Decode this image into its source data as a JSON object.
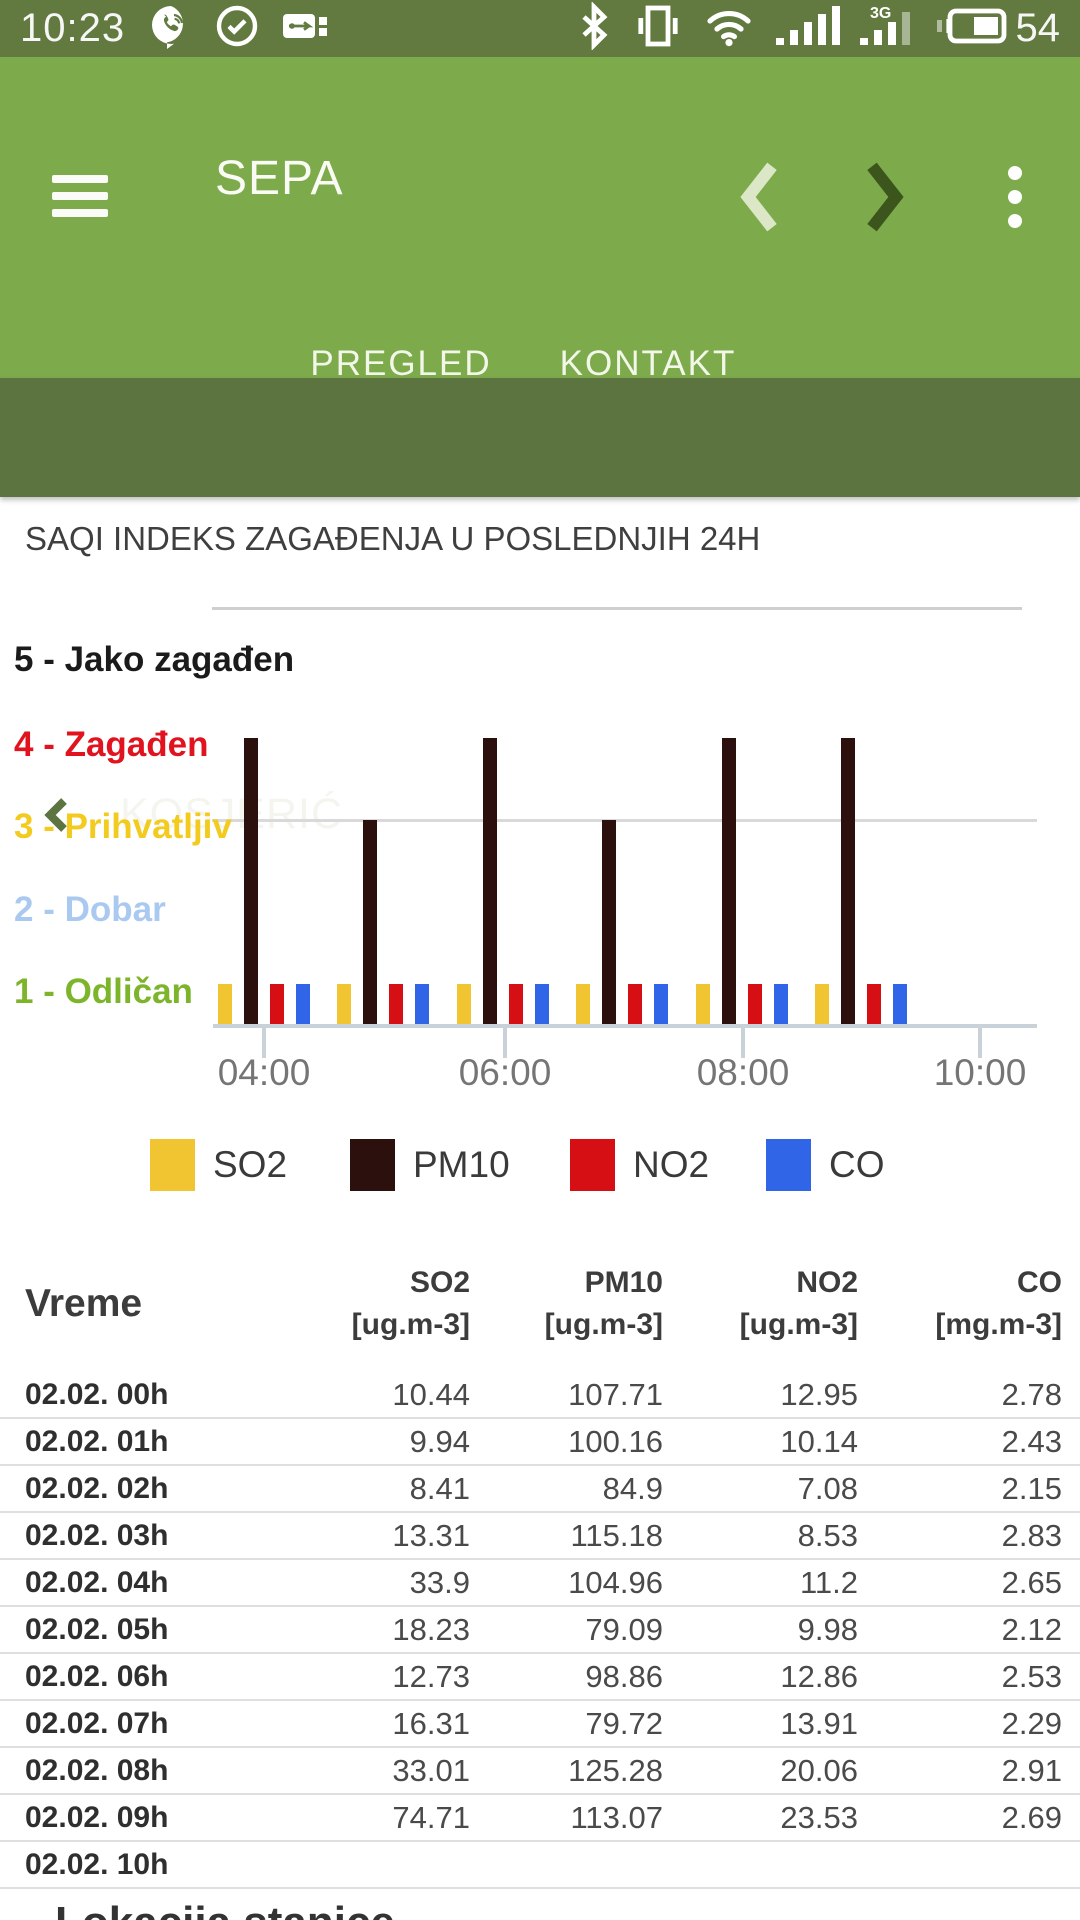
{
  "status_bar": {
    "time": "10:23",
    "battery_percent": "54",
    "icons_left": [
      "viber-icon",
      "check-circle-icon",
      "usb-icon"
    ],
    "icons_right": [
      "bluetooth-icon",
      "vibrate-icon",
      "wifi-icon",
      "signal-icon",
      "signal-3g-icon",
      "battery-icon"
    ]
  },
  "app_bar": {
    "title": "SEPA",
    "tabs": [
      {
        "label": "PREGLED",
        "active": true
      },
      {
        "label": "KONTAKT",
        "active": false
      }
    ]
  },
  "location_bar": {
    "title": "KOSJERIĆ"
  },
  "section": {
    "title": "SAQI INDEKS ZAGAĐENJA U POSLEDNJIH 24H"
  },
  "chart_data": {
    "type": "bar",
    "title": "SAQI INDEKS ZAGAĐENJA U POSLEDNJIH 24H",
    "x": [
      "04:00",
      "05:00",
      "06:00",
      "07:00",
      "08:00",
      "09:00"
    ],
    "x_tick_labels": [
      "04:00",
      "06:00",
      "08:00",
      "10:00"
    ],
    "ylim": [
      0,
      6
    ],
    "grid": "horizontal line at level 3 and top boundary only",
    "legend_position": "bottom",
    "y_levels": [
      {
        "value": 5,
        "label": "5 - Jako zagađen",
        "color": "#1b1b1b"
      },
      {
        "value": 4,
        "label": "4 - Zagađen",
        "color": "#e0131f"
      },
      {
        "value": 3,
        "label": "3 - Prihvatljiv",
        "color": "#f2cb1e"
      },
      {
        "value": 2,
        "label": "2 - Dobar",
        "color": "#a9c9f0"
      },
      {
        "value": 1,
        "label": "1 - Odličan",
        "color": "#7db52a"
      }
    ],
    "series": [
      {
        "name": "SO2",
        "color": "#f1c431",
        "values": [
          1,
          1,
          1,
          1,
          1,
          1
        ]
      },
      {
        "name": "PM10",
        "color": "#2b100e",
        "values": [
          4,
          3,
          4,
          3,
          4,
          4
        ]
      },
      {
        "name": "NO2",
        "color": "#d50f13",
        "values": [
          1,
          1,
          1,
          1,
          1,
          1
        ]
      },
      {
        "name": "CO",
        "color": "#3065e8",
        "values": [
          1,
          1,
          1,
          1,
          1,
          1
        ]
      }
    ]
  },
  "table": {
    "time_header": "Vreme",
    "columns": [
      {
        "name": "SO2",
        "unit": "[ug.m-3]"
      },
      {
        "name": "PM10",
        "unit": "[ug.m-3]"
      },
      {
        "name": "NO2",
        "unit": "[ug.m-3]"
      },
      {
        "name": "CO",
        "unit": "[mg.m-3]"
      }
    ],
    "rows": [
      {
        "time": "02.02. 00h",
        "values": [
          "10.44",
          "107.71",
          "12.95",
          "2.78"
        ]
      },
      {
        "time": "02.02. 01h",
        "values": [
          "9.94",
          "100.16",
          "10.14",
          "2.43"
        ]
      },
      {
        "time": "02.02. 02h",
        "values": [
          "8.41",
          "84.9",
          "7.08",
          "2.15"
        ]
      },
      {
        "time": "02.02. 03h",
        "values": [
          "13.31",
          "115.18",
          "8.53",
          "2.83"
        ]
      },
      {
        "time": "02.02. 04h",
        "values": [
          "33.9",
          "104.96",
          "11.2",
          "2.65"
        ]
      },
      {
        "time": "02.02. 05h",
        "values": [
          "18.23",
          "79.09",
          "9.98",
          "2.12"
        ]
      },
      {
        "time": "02.02. 06h",
        "values": [
          "12.73",
          "98.86",
          "12.86",
          "2.53"
        ]
      },
      {
        "time": "02.02. 07h",
        "values": [
          "16.31",
          "79.72",
          "13.91",
          "2.29"
        ]
      },
      {
        "time": "02.02. 08h",
        "values": [
          "33.01",
          "125.28",
          "20.06",
          "2.91"
        ]
      },
      {
        "time": "02.02. 09h",
        "values": [
          "74.71",
          "113.07",
          "23.53",
          "2.69"
        ]
      },
      {
        "time": "02.02. 10h",
        "values": [
          "",
          "",
          "",
          ""
        ]
      }
    ]
  },
  "footer": {
    "heading": "Lokacija stanice"
  }
}
